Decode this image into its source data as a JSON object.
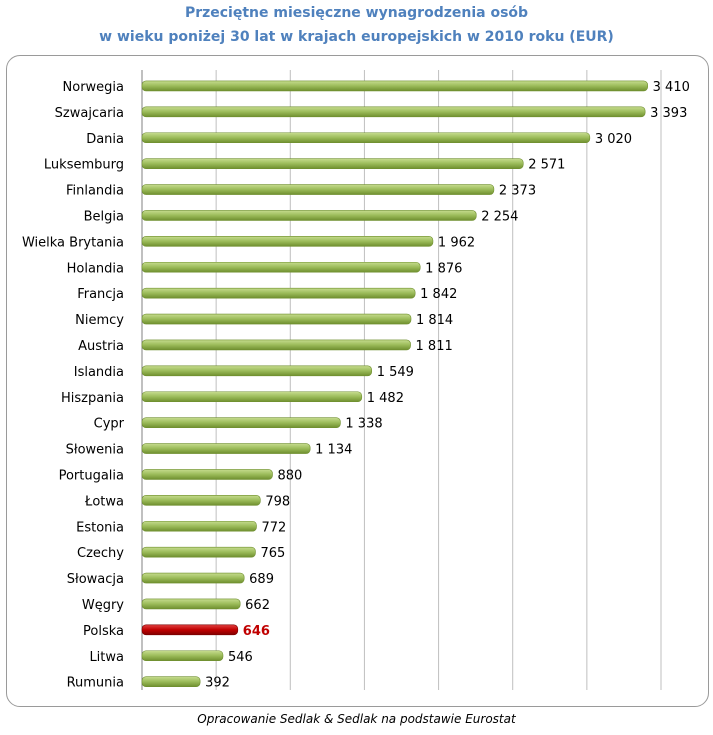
{
  "chart_data": {
    "type": "bar",
    "orientation": "horizontal",
    "title": "Przeciętne miesięczne wynagrodzenia osób",
    "subtitle": "w wieku poniżej 30 lat w krajach europejskich w 2010 roku (EUR)",
    "categories": [
      "Norwegia",
      "Szwajcaria",
      "Dania",
      "Luksemburg",
      "Finlandia",
      "Belgia",
      "Wielka Brytania",
      "Holandia",
      "Francja",
      "Niemcy",
      "Austria",
      "Islandia",
      "Hiszpania",
      "Cypr",
      "Słowenia",
      "Portugalia",
      "Łotwa",
      "Estonia",
      "Czechy",
      "Słowacja",
      "Węgry",
      "Polska",
      "Litwa",
      "Rumunia"
    ],
    "values": [
      3410,
      3393,
      3020,
      2571,
      2373,
      2254,
      1962,
      1876,
      1842,
      1814,
      1811,
      1549,
      1482,
      1338,
      1134,
      880,
      798,
      772,
      765,
      689,
      662,
      646,
      546,
      392
    ],
    "value_labels": [
      "3 410",
      "3 393",
      "3 020",
      "2 571",
      "2 373",
      "2 254",
      "1 962",
      "1 876",
      "1 842",
      "1 814",
      "1 811",
      "1 549",
      "1 482",
      "1 338",
      "1 134",
      "880",
      "798",
      "772",
      "765",
      "689",
      "662",
      "646",
      "546",
      "392"
    ],
    "highlight": "Polska",
    "xlim": [
      0,
      3500
    ],
    "grid": true,
    "xlabel": "",
    "ylabel": "",
    "colors": {
      "bar": "#9bbb59",
      "bar_dark": "#6f8f2f",
      "highlight": "#c00000",
      "title": "#4f81bd"
    }
  },
  "source": "Opracowanie Sedlak & Sedlak na podstawie Eurostat"
}
